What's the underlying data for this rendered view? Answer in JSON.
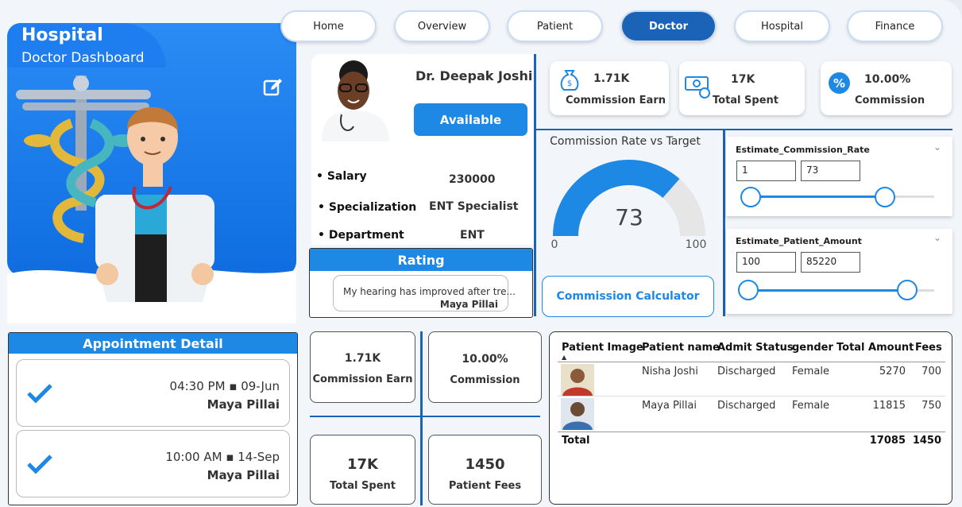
{
  "header": {
    "title": "Hospital",
    "subtitle": "Doctor Dashboard"
  },
  "nav": [
    "Home",
    "Overview",
    "Patient",
    "Doctor",
    "Hospital",
    "Finance"
  ],
  "nav_active": "Doctor",
  "doctor": {
    "name": "Dr. Deepak Joshi",
    "status": "Available",
    "fields": [
      {
        "label": "Salary",
        "value": "230000"
      },
      {
        "label": "Specialization",
        "value": "ENT Specialist"
      },
      {
        "label": "Department",
        "value": "ENT"
      }
    ]
  },
  "rating": {
    "title": "Rating",
    "review": "My hearing has improved after tre...",
    "reviewer": "Maya Pillai"
  },
  "kpis_top": [
    {
      "value": "1.71K",
      "label": "Commission Earn",
      "icon": "money-bag-icon"
    },
    {
      "value": "17K",
      "label": "Total Spent",
      "icon": "cash-icon"
    },
    {
      "value": "10.00%",
      "label": "Commission",
      "icon": "percent-icon"
    }
  ],
  "gauge": {
    "title": "Commission Rate vs Target",
    "value": 73,
    "min": 0,
    "max": 100,
    "value_label": "73",
    "min_label": "0",
    "max_label": "100"
  },
  "commission_calculator": "Commission Calculator",
  "sliders": [
    {
      "title": "Estimate_Commission_Rate",
      "min": "1",
      "max": "73"
    },
    {
      "title": "Estimate_Patient_Amount",
      "min": "100",
      "max": "85220"
    }
  ],
  "appointments": {
    "title": "Appointment Detail",
    "items": [
      {
        "time": "04:30 PM ▪ 09-Jun",
        "name": "Maya Pillai"
      },
      {
        "time": "10:00 AM ▪ 14-Sep",
        "name": "Maya Pillai"
      }
    ]
  },
  "kpis_bottom": [
    {
      "value": "1.71K",
      "label": "Commission Earn"
    },
    {
      "value": "10.00%",
      "label": "Commission"
    },
    {
      "value": "17K",
      "label": "Total Spent"
    },
    {
      "value": "1450",
      "label": "Patient Fees"
    }
  ],
  "patients_table": {
    "columns": [
      "Patient Image",
      "Patient name",
      "Admit Status",
      "gender",
      "Total Amount",
      "Fees"
    ],
    "rows": [
      {
        "name": "Nisha Joshi",
        "status": "Discharged",
        "gender": "Female",
        "amount": "5270",
        "fees": "700"
      },
      {
        "name": "Maya Pillai",
        "status": "Discharged",
        "gender": "Female",
        "amount": "11815",
        "fees": "750"
      }
    ],
    "total": {
      "label": "Total",
      "amount": "17085",
      "fees": "1450"
    }
  },
  "colors": {
    "primary": "#1e88e5",
    "nav_active": "#1a63b6",
    "hero": "#1e7ef0"
  }
}
